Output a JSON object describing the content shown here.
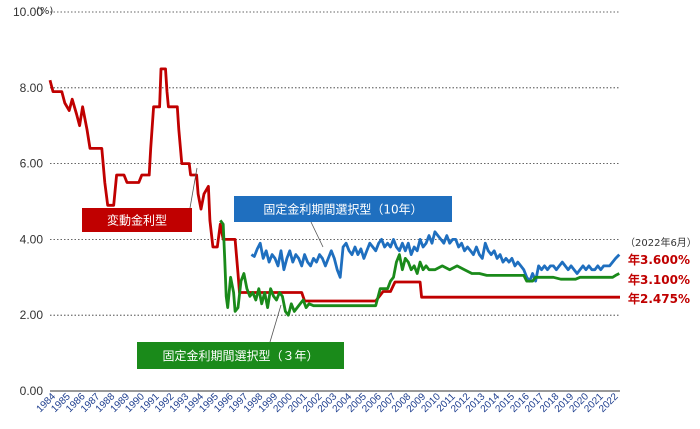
{
  "chart_data": {
    "type": "line",
    "unit": "(%)",
    "ylim": [
      0,
      10
    ],
    "yticks": [
      "0.00",
      "2.00",
      "4.00",
      "6.00",
      "8.00",
      "10.00"
    ],
    "ygrid": true,
    "xlim": [
      1984,
      2022.5
    ],
    "xticks": [
      "1984",
      "1985",
      "1986",
      "1987",
      "1988",
      "1989",
      "1990",
      "1991",
      "1992",
      "1993",
      "1994",
      "1995",
      "1996",
      "1997",
      "1998",
      "1999",
      "2000",
      "2001",
      "2002",
      "2003",
      "2004",
      "2005",
      "2006",
      "2007",
      "2008",
      "2009",
      "2010",
      "2011",
      "2012",
      "2013",
      "2014",
      "2015",
      "2016",
      "2017",
      "2018",
      "2019",
      "2020",
      "2021",
      "2022"
    ],
    "date_note": "（2022年6月）",
    "series": [
      {
        "name": "変動金利型",
        "color": "#c00000",
        "end_label": "年2.475%",
        "points": [
          [
            1984.0,
            8.2
          ],
          [
            1984.2,
            7.9
          ],
          [
            1984.8,
            7.9
          ],
          [
            1985.0,
            7.6
          ],
          [
            1985.3,
            7.4
          ],
          [
            1985.5,
            7.7
          ],
          [
            1985.8,
            7.3
          ],
          [
            1986.0,
            7.0
          ],
          [
            1986.2,
            7.5
          ],
          [
            1986.5,
            6.9
          ],
          [
            1986.7,
            6.4
          ],
          [
            1987.5,
            6.4
          ],
          [
            1987.7,
            5.5
          ],
          [
            1987.9,
            4.9
          ],
          [
            1988.3,
            4.9
          ],
          [
            1988.5,
            5.7
          ],
          [
            1989.0,
            5.7
          ],
          [
            1989.2,
            5.5
          ],
          [
            1990.0,
            5.5
          ],
          [
            1990.2,
            5.7
          ],
          [
            1990.7,
            5.7
          ],
          [
            1990.8,
            6.4
          ],
          [
            1991.0,
            7.5
          ],
          [
            1991.4,
            7.5
          ],
          [
            1991.5,
            8.5
          ],
          [
            1991.8,
            8.5
          ],
          [
            1991.9,
            7.9
          ],
          [
            1992.0,
            7.5
          ],
          [
            1992.6,
            7.5
          ],
          [
            1992.7,
            6.9
          ],
          [
            1992.9,
            6.0
          ],
          [
            1993.4,
            6.0
          ],
          [
            1993.5,
            5.7
          ],
          [
            1993.9,
            5.7
          ],
          [
            1994.0,
            5.2
          ],
          [
            1994.2,
            4.8
          ],
          [
            1994.4,
            5.2
          ],
          [
            1994.7,
            5.4
          ],
          [
            1994.8,
            4.5
          ],
          [
            1995.0,
            3.8
          ],
          [
            1995.3,
            3.8
          ],
          [
            1995.5,
            4.4
          ],
          [
            1995.7,
            4.0
          ],
          [
            1996.5,
            4.0
          ],
          [
            1996.7,
            3.1
          ],
          [
            1996.8,
            2.6
          ],
          [
            2001.0,
            2.6
          ],
          [
            2001.2,
            2.375
          ],
          [
            2006.0,
            2.375
          ],
          [
            2006.5,
            2.625
          ],
          [
            2007.0,
            2.625
          ],
          [
            2007.3,
            2.875
          ],
          [
            2009.0,
            2.875
          ],
          [
            2009.1,
            2.475
          ],
          [
            2022.5,
            2.475
          ]
        ]
      },
      {
        "name": "固定金利期間選択型（10年）",
        "color": "#1f6fbf",
        "end_label": "年3.600%",
        "points": [
          [
            1997.6,
            3.6
          ],
          [
            1997.8,
            3.55
          ],
          [
            1998.0,
            3.75
          ],
          [
            1998.2,
            3.9
          ],
          [
            1998.4,
            3.5
          ],
          [
            1998.6,
            3.7
          ],
          [
            1998.8,
            3.4
          ],
          [
            1999.0,
            3.6
          ],
          [
            1999.2,
            3.5
          ],
          [
            1999.4,
            3.3
          ],
          [
            1999.6,
            3.7
          ],
          [
            1999.8,
            3.2
          ],
          [
            2000.0,
            3.5
          ],
          [
            2000.2,
            3.7
          ],
          [
            2000.4,
            3.4
          ],
          [
            2000.6,
            3.6
          ],
          [
            2000.8,
            3.5
          ],
          [
            2001.0,
            3.3
          ],
          [
            2001.2,
            3.6
          ],
          [
            2001.4,
            3.4
          ],
          [
            2001.6,
            3.3
          ],
          [
            2001.8,
            3.5
          ],
          [
            2002.0,
            3.4
          ],
          [
            2002.2,
            3.6
          ],
          [
            2002.4,
            3.5
          ],
          [
            2002.6,
            3.3
          ],
          [
            2002.8,
            3.5
          ],
          [
            2003.0,
            3.7
          ],
          [
            2003.2,
            3.5
          ],
          [
            2003.4,
            3.2
          ],
          [
            2003.6,
            3.0
          ],
          [
            2003.8,
            3.8
          ],
          [
            2004.0,
            3.9
          ],
          [
            2004.2,
            3.7
          ],
          [
            2004.4,
            3.6
          ],
          [
            2004.6,
            3.8
          ],
          [
            2004.8,
            3.6
          ],
          [
            2005.0,
            3.75
          ],
          [
            2005.2,
            3.5
          ],
          [
            2005.4,
            3.7
          ],
          [
            2005.6,
            3.9
          ],
          [
            2005.8,
            3.8
          ],
          [
            2006.0,
            3.7
          ],
          [
            2006.2,
            3.9
          ],
          [
            2006.4,
            4.0
          ],
          [
            2006.6,
            3.8
          ],
          [
            2006.8,
            3.9
          ],
          [
            2007.0,
            3.8
          ],
          [
            2007.2,
            4.0
          ],
          [
            2007.4,
            3.8
          ],
          [
            2007.6,
            3.7
          ],
          [
            2007.8,
            3.9
          ],
          [
            2008.0,
            3.7
          ],
          [
            2008.2,
            3.9
          ],
          [
            2008.4,
            3.6
          ],
          [
            2008.6,
            3.8
          ],
          [
            2008.8,
            3.7
          ],
          [
            2009.0,
            4.0
          ],
          [
            2009.2,
            3.8
          ],
          [
            2009.4,
            3.9
          ],
          [
            2009.6,
            4.1
          ],
          [
            2009.8,
            3.9
          ],
          [
            2010.0,
            4.2
          ],
          [
            2010.2,
            4.1
          ],
          [
            2010.4,
            4.0
          ],
          [
            2010.6,
            3.9
          ],
          [
            2010.8,
            4.1
          ],
          [
            2011.0,
            3.9
          ],
          [
            2011.2,
            4.0
          ],
          [
            2011.4,
            4.0
          ],
          [
            2011.6,
            3.8
          ],
          [
            2011.8,
            3.9
          ],
          [
            2012.0,
            3.7
          ],
          [
            2012.2,
            3.8
          ],
          [
            2012.4,
            3.7
          ],
          [
            2012.6,
            3.6
          ],
          [
            2012.8,
            3.8
          ],
          [
            2013.0,
            3.6
          ],
          [
            2013.2,
            3.5
          ],
          [
            2013.4,
            3.9
          ],
          [
            2013.6,
            3.7
          ],
          [
            2013.8,
            3.6
          ],
          [
            2014.0,
            3.7
          ],
          [
            2014.2,
            3.5
          ],
          [
            2014.4,
            3.6
          ],
          [
            2014.6,
            3.4
          ],
          [
            2014.8,
            3.5
          ],
          [
            2015.0,
            3.4
          ],
          [
            2015.2,
            3.5
          ],
          [
            2015.4,
            3.3
          ],
          [
            2015.6,
            3.4
          ],
          [
            2015.8,
            3.3
          ],
          [
            2016.0,
            3.2
          ],
          [
            2016.2,
            3.0
          ],
          [
            2016.4,
            2.9
          ],
          [
            2016.6,
            3.1
          ],
          [
            2016.8,
            2.9
          ],
          [
            2017.0,
            3.3
          ],
          [
            2017.2,
            3.2
          ],
          [
            2017.4,
            3.3
          ],
          [
            2017.6,
            3.2
          ],
          [
            2017.8,
            3.3
          ],
          [
            2018.0,
            3.3
          ],
          [
            2018.2,
            3.2
          ],
          [
            2018.4,
            3.3
          ],
          [
            2018.6,
            3.4
          ],
          [
            2018.8,
            3.3
          ],
          [
            2019.0,
            3.2
          ],
          [
            2019.2,
            3.3
          ],
          [
            2019.4,
            3.2
          ],
          [
            2019.6,
            3.1
          ],
          [
            2019.8,
            3.2
          ],
          [
            2020.0,
            3.3
          ],
          [
            2020.2,
            3.2
          ],
          [
            2020.4,
            3.3
          ],
          [
            2020.6,
            3.2
          ],
          [
            2020.8,
            3.2
          ],
          [
            2021.0,
            3.3
          ],
          [
            2021.2,
            3.2
          ],
          [
            2021.4,
            3.3
          ],
          [
            2021.6,
            3.3
          ],
          [
            2021.8,
            3.3
          ],
          [
            2022.0,
            3.4
          ],
          [
            2022.2,
            3.5
          ],
          [
            2022.45,
            3.6
          ]
        ]
      },
      {
        "name": "固定金利期間選択型（３年）",
        "color": "#1a8a1a",
        "end_label": "年3.100%",
        "points": [
          [
            1995.5,
            4.5
          ],
          [
            1995.7,
            4.4
          ],
          [
            1995.8,
            3.5
          ],
          [
            1995.9,
            2.5
          ],
          [
            1996.0,
            2.2
          ],
          [
            1996.2,
            3.0
          ],
          [
            1996.4,
            2.6
          ],
          [
            1996.5,
            2.1
          ],
          [
            1996.7,
            2.2
          ],
          [
            1996.9,
            2.9
          ],
          [
            1997.1,
            3.1
          ],
          [
            1997.3,
            2.7
          ],
          [
            1997.5,
            2.5
          ],
          [
            1997.7,
            2.6
          ],
          [
            1997.9,
            2.4
          ],
          [
            1998.1,
            2.7
          ],
          [
            1998.3,
            2.3
          ],
          [
            1998.5,
            2.6
          ],
          [
            1998.7,
            2.2
          ],
          [
            1998.9,
            2.7
          ],
          [
            1999.1,
            2.5
          ],
          [
            1999.3,
            2.4
          ],
          [
            1999.5,
            2.6
          ],
          [
            1999.7,
            2.5
          ],
          [
            1999.9,
            2.1
          ],
          [
            2000.1,
            2.0
          ],
          [
            2000.3,
            2.3
          ],
          [
            2000.5,
            2.1
          ],
          [
            2000.7,
            2.2
          ],
          [
            2000.9,
            2.3
          ],
          [
            2001.1,
            2.4
          ],
          [
            2001.3,
            2.2
          ],
          [
            2001.5,
            2.3
          ],
          [
            2001.8,
            2.25
          ],
          [
            2003.0,
            2.25
          ],
          [
            2006.0,
            2.25
          ],
          [
            2006.3,
            2.7
          ],
          [
            2006.8,
            2.7
          ],
          [
            2007.0,
            2.9
          ],
          [
            2007.2,
            3.0
          ],
          [
            2007.4,
            3.4
          ],
          [
            2007.6,
            3.6
          ],
          [
            2007.8,
            3.2
          ],
          [
            2008.0,
            3.5
          ],
          [
            2008.2,
            3.4
          ],
          [
            2008.4,
            3.2
          ],
          [
            2008.6,
            3.3
          ],
          [
            2008.8,
            3.1
          ],
          [
            2009.0,
            3.4
          ],
          [
            2009.2,
            3.2
          ],
          [
            2009.4,
            3.3
          ],
          [
            2009.6,
            3.2
          ],
          [
            2010.0,
            3.2
          ],
          [
            2010.5,
            3.3
          ],
          [
            2011.0,
            3.2
          ],
          [
            2011.5,
            3.3
          ],
          [
            2012.0,
            3.2
          ],
          [
            2012.5,
            3.1
          ],
          [
            2013.0,
            3.1
          ],
          [
            2013.5,
            3.05
          ],
          [
            2016.0,
            3.05
          ],
          [
            2016.2,
            2.9
          ],
          [
            2016.6,
            2.9
          ],
          [
            2016.8,
            3.0
          ],
          [
            2018.0,
            3.0
          ],
          [
            2018.5,
            2.95
          ],
          [
            2019.5,
            2.95
          ],
          [
            2019.8,
            3.0
          ],
          [
            2022.0,
            3.0
          ],
          [
            2022.2,
            3.05
          ],
          [
            2022.45,
            3.1
          ]
        ]
      }
    ]
  }
}
